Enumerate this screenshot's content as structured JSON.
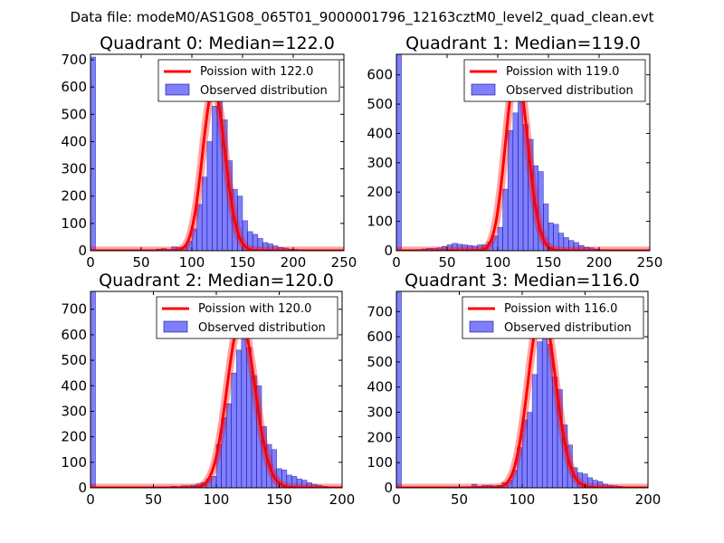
{
  "figure": {
    "suptitle": "Data file: modeM0/AS1G08_065T01_9000001796_12163cztM0_level2_quad_clean.evt"
  },
  "chart_data": [
    {
      "type": "bar",
      "title": "Quadrant 0: Median=122.0",
      "median": 122.0,
      "xlim": [
        0,
        250
      ],
      "ylim": [
        0,
        720
      ],
      "xticks": [
        0,
        50,
        100,
        150,
        200,
        250
      ],
      "yticks": [
        0,
        100,
        200,
        300,
        400,
        500,
        600,
        700
      ],
      "legend": {
        "location": "top-right",
        "fit_label": "Poission with 122.0",
        "hist_label": "Observed distribution"
      },
      "bin_width": 5,
      "bins": [
        [
          0,
          710
        ],
        [
          65,
          6
        ],
        [
          70,
          8
        ],
        [
          75,
          5
        ],
        [
          80,
          14
        ],
        [
          85,
          12
        ],
        [
          90,
          14
        ],
        [
          95,
          35
        ],
        [
          100,
          80
        ],
        [
          105,
          170
        ],
        [
          110,
          270
        ],
        [
          115,
          400
        ],
        [
          120,
          530
        ],
        [
          125,
          550
        ],
        [
          130,
          480
        ],
        [
          135,
          330
        ],
        [
          140,
          225
        ],
        [
          145,
          200
        ],
        [
          150,
          110
        ],
        [
          155,
          70
        ],
        [
          160,
          60
        ],
        [
          165,
          45
        ],
        [
          170,
          30
        ],
        [
          175,
          25
        ],
        [
          180,
          18
        ],
        [
          185,
          12
        ],
        [
          190,
          10
        ],
        [
          195,
          6
        ],
        [
          200,
          5
        ],
        [
          205,
          3
        ]
      ]
    },
    {
      "type": "bar",
      "title": "Quadrant 1: Median=119.0",
      "median": 119.0,
      "xlim": [
        0,
        250
      ],
      "ylim": [
        0,
        670
      ],
      "xticks": [
        0,
        50,
        100,
        150,
        200,
        250
      ],
      "yticks": [
        0,
        100,
        200,
        300,
        400,
        500,
        600
      ],
      "legend": {
        "location": "top-right",
        "fit_label": "Poission with 119.0",
        "hist_label": "Observed distribution"
      },
      "bin_width": 5,
      "bins": [
        [
          0,
          670
        ],
        [
          5,
          2
        ],
        [
          10,
          2
        ],
        [
          15,
          3
        ],
        [
          20,
          4
        ],
        [
          25,
          6
        ],
        [
          30,
          8
        ],
        [
          35,
          8
        ],
        [
          40,
          10
        ],
        [
          45,
          15
        ],
        [
          50,
          20
        ],
        [
          55,
          25
        ],
        [
          60,
          22
        ],
        [
          65,
          20
        ],
        [
          70,
          18
        ],
        [
          75,
          16
        ],
        [
          80,
          20
        ],
        [
          85,
          20
        ],
        [
          90,
          30
        ],
        [
          95,
          50
        ],
        [
          100,
          80
        ],
        [
          105,
          210
        ],
        [
          110,
          410
        ],
        [
          115,
          470
        ],
        [
          120,
          570
        ],
        [
          125,
          430
        ],
        [
          130,
          380
        ],
        [
          135,
          290
        ],
        [
          140,
          270
        ],
        [
          145,
          160
        ],
        [
          150,
          95
        ],
        [
          155,
          90
        ],
        [
          160,
          60
        ],
        [
          165,
          45
        ],
        [
          170,
          35
        ],
        [
          175,
          28
        ],
        [
          180,
          18
        ],
        [
          185,
          12
        ],
        [
          190,
          10
        ],
        [
          195,
          6
        ],
        [
          200,
          4
        ]
      ]
    },
    {
      "type": "bar",
      "title": "Quadrant 2: Median=120.0",
      "median": 120.0,
      "xlim": [
        0,
        200
      ],
      "ylim": [
        0,
        770
      ],
      "xticks": [
        0,
        50,
        100,
        150,
        200
      ],
      "yticks": [
        0,
        100,
        200,
        300,
        400,
        500,
        600,
        700
      ],
      "legend": {
        "location": "top-right",
        "fit_label": "Poission with 120.0",
        "hist_label": "Observed distribution"
      },
      "bin_width": 4,
      "bins": [
        [
          0,
          770
        ],
        [
          60,
          4
        ],
        [
          64,
          6
        ],
        [
          68,
          5
        ],
        [
          72,
          8
        ],
        [
          76,
          8
        ],
        [
          80,
          10
        ],
        [
          84,
          15
        ],
        [
          88,
          20
        ],
        [
          92,
          35
        ],
        [
          96,
          45
        ],
        [
          100,
          170
        ],
        [
          104,
          275
        ],
        [
          108,
          330
        ],
        [
          112,
          450
        ],
        [
          116,
          540
        ],
        [
          120,
          610
        ],
        [
          124,
          550
        ],
        [
          128,
          440
        ],
        [
          132,
          400
        ],
        [
          136,
          240
        ],
        [
          140,
          170
        ],
        [
          144,
          150
        ],
        [
          148,
          75
        ],
        [
          152,
          70
        ],
        [
          156,
          50
        ],
        [
          160,
          45
        ],
        [
          164,
          35
        ],
        [
          168,
          30
        ],
        [
          172,
          20
        ],
        [
          176,
          14
        ],
        [
          180,
          10
        ],
        [
          184,
          6
        ],
        [
          188,
          4
        ]
      ]
    },
    {
      "type": "bar",
      "title": "Quadrant 3: Median=116.0",
      "median": 116.0,
      "xlim": [
        0,
        200
      ],
      "ylim": [
        0,
        780
      ],
      "xticks": [
        0,
        50,
        100,
        150,
        200
      ],
      "yticks": [
        0,
        100,
        200,
        300,
        400,
        500,
        600,
        700
      ],
      "legend": {
        "location": "top-right",
        "fit_label": "Poission with 116.0",
        "hist_label": "Observed distribution"
      },
      "bin_width": 4,
      "bins": [
        [
          0,
          780
        ],
        [
          56,
          5
        ],
        [
          60,
          14
        ],
        [
          64,
          6
        ],
        [
          68,
          10
        ],
        [
          72,
          10
        ],
        [
          76,
          8
        ],
        [
          80,
          10
        ],
        [
          84,
          20
        ],
        [
          88,
          30
        ],
        [
          92,
          70
        ],
        [
          96,
          160
        ],
        [
          100,
          270
        ],
        [
          104,
          300
        ],
        [
          108,
          450
        ],
        [
          112,
          580
        ],
        [
          116,
          660
        ],
        [
          120,
          570
        ],
        [
          124,
          440
        ],
        [
          128,
          390
        ],
        [
          132,
          250
        ],
        [
          136,
          170
        ],
        [
          140,
          80
        ],
        [
          144,
          60
        ],
        [
          148,
          55
        ],
        [
          152,
          40
        ],
        [
          156,
          30
        ],
        [
          160,
          25
        ],
        [
          164,
          15
        ],
        [
          168,
          10
        ],
        [
          172,
          8
        ],
        [
          176,
          6
        ],
        [
          180,
          4
        ],
        [
          184,
          3
        ]
      ]
    }
  ]
}
